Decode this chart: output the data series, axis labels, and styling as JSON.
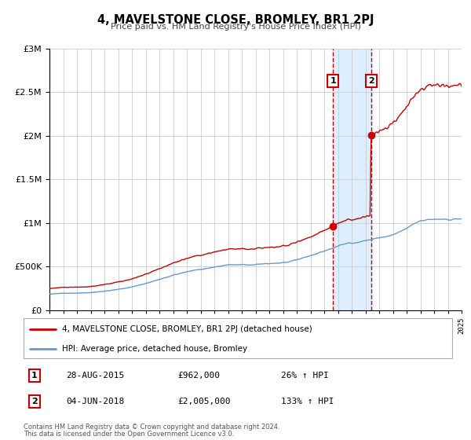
{
  "title": "4, MAVELSTONE CLOSE, BROMLEY, BR1 2PJ",
  "subtitle": "Price paid vs. HM Land Registry's House Price Index (HPI)",
  "legend_line1": "4, MAVELSTONE CLOSE, BROMLEY, BR1 2PJ (detached house)",
  "legend_line2": "HPI: Average price, detached house, Bromley",
  "sale1_date": "28-AUG-2015",
  "sale1_price": 962000,
  "sale1_hpi": "26% ↑ HPI",
  "sale2_date": "04-JUN-2018",
  "sale2_price": 2005000,
  "sale2_hpi": "133% ↑ HPI",
  "footnote1": "Contains HM Land Registry data © Crown copyright and database right 2024.",
  "footnote2": "This data is licensed under the Open Government Licence v3.0.",
  "red_color": "#cc0000",
  "blue_color": "#6699cc",
  "shading_color": "#ddeeff",
  "grid_color": "#cccccc",
  "background_color": "#ffffff",
  "sale1_x": 2015.65,
  "sale2_x": 2018.42,
  "ylim_max": 3000000,
  "xlim_min": 1995,
  "xlim_max": 2025
}
